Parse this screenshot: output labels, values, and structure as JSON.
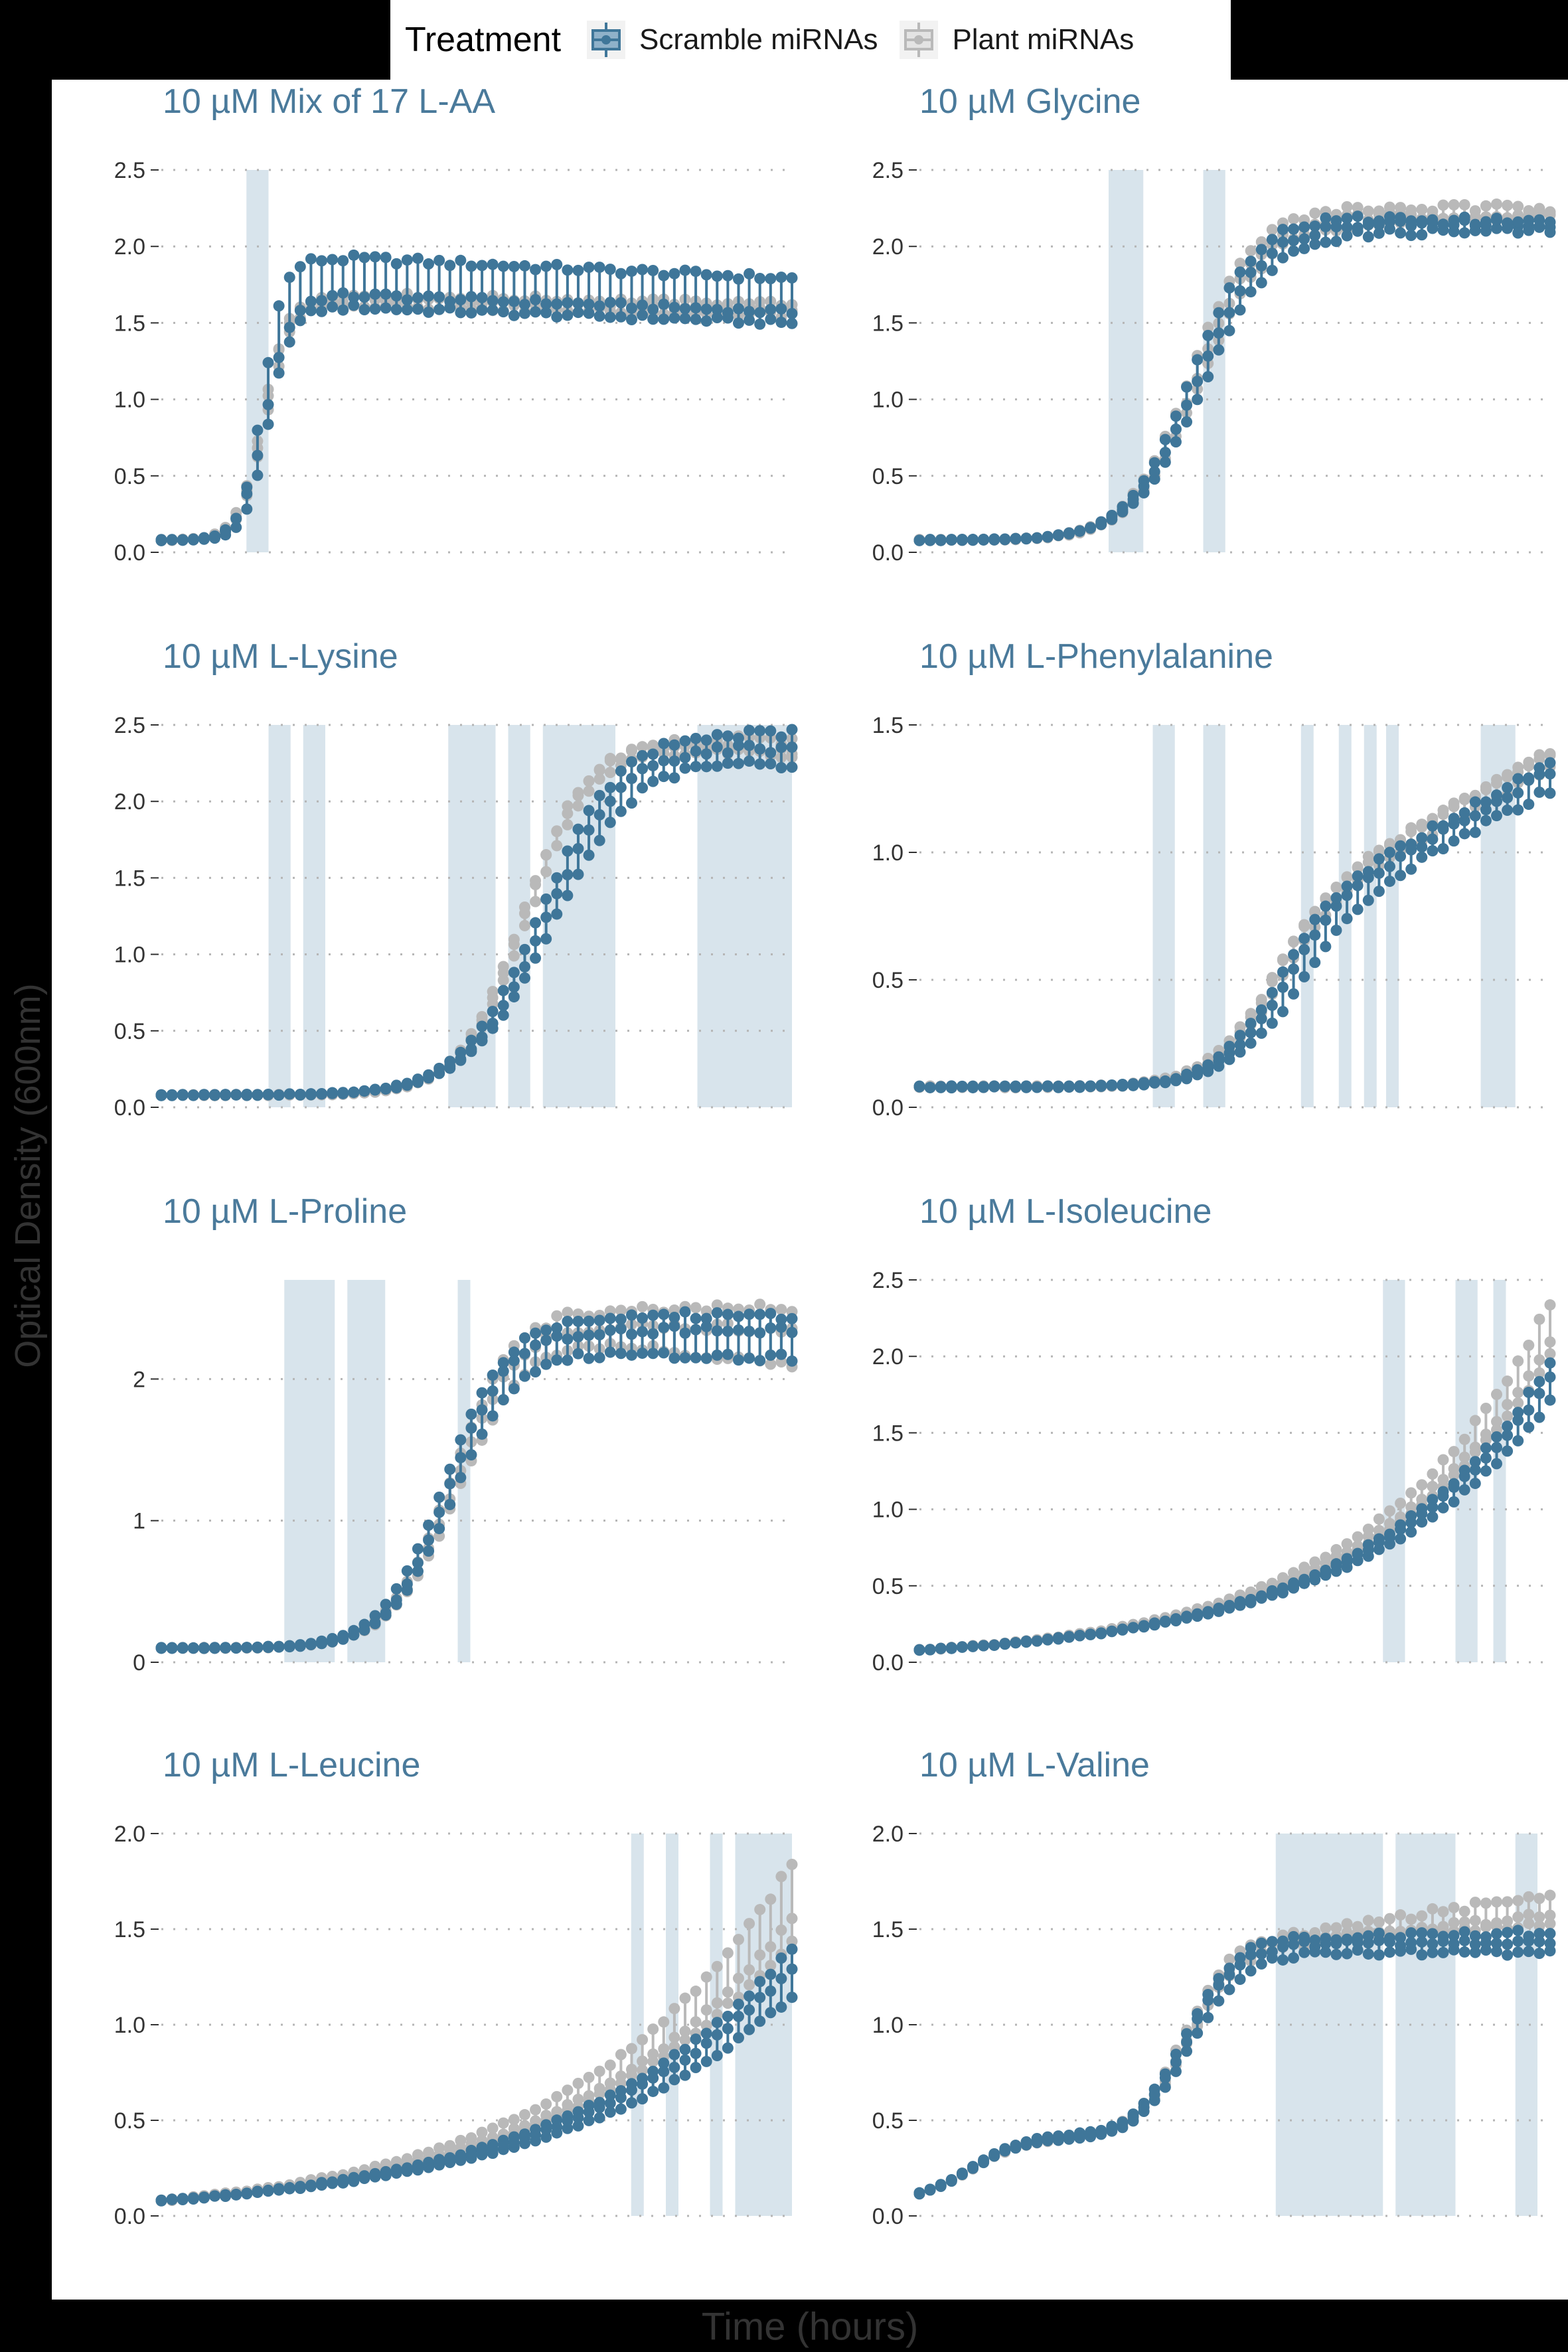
{
  "legend": {
    "title": "Treatment",
    "items": [
      {
        "label": "Scramble miRNAs",
        "color": "#3f7699"
      },
      {
        "label": "Plant miRNAs",
        "color": "#b9b9b9"
      }
    ]
  },
  "axis": {
    "xlabel": "Time (hours)",
    "ylabel": "Optical Density (600nm)"
  },
  "colors": {
    "scramble": "#3f7699",
    "plant": "#b9b9b9",
    "shade": "#d8e4ec",
    "title": "#4a7a9b"
  },
  "chart_data": [
    {
      "type": "line",
      "title": "10 µM Mix of 17 L-AA",
      "ylim": [
        0,
        2.5
      ],
      "yticks": [
        "0.0",
        "0.5",
        "1.0",
        "1.5",
        "2.0",
        "2.5"
      ],
      "ytick_values": [
        0,
        0.5,
        1,
        1.5,
        2,
        2.5
      ],
      "x": [
        0,
        100
      ],
      "n_points": 60,
      "shaded": [
        [
          13.5,
          17
        ]
      ],
      "series": [
        {
          "name": "Scramble miRNAs",
          "reps": [
            {
              "start": 0.08,
              "plateau": 1.92,
              "mid": 16,
              "rate": 0.6,
              "end": 1.79
            },
            {
              "start": 0.08,
              "plateau": 1.6,
              "mid": 17,
              "rate": 0.55,
              "end": 1.5
            },
            {
              "start": 0.08,
              "plateau": 1.68,
              "mid": 16.5,
              "rate": 0.5,
              "end": 1.57
            }
          ]
        },
        {
          "name": "Plant miRNAs",
          "reps": [
            {
              "start": 0.08,
              "plateau": 1.66,
              "mid": 16,
              "rate": 0.5,
              "end": 1.6
            },
            {
              "start": 0.08,
              "plateau": 1.62,
              "mid": 16.5,
              "rate": 0.5,
              "end": 1.55
            },
            {
              "start": 0.08,
              "plateau": 1.68,
              "mid": 16.2,
              "rate": 0.52,
              "end": 1.62
            }
          ]
        }
      ]
    },
    {
      "type": "line",
      "title": "10 µM Glycine",
      "ylim": [
        0,
        2.5
      ],
      "yticks": [
        "0.0",
        "0.5",
        "1.0",
        "1.5",
        "2.0",
        "2.5"
      ],
      "ytick_values": [
        0,
        0.5,
        1,
        1.5,
        2,
        2.5
      ],
      "x": [
        0,
        100
      ],
      "n_points": 60,
      "shaded": [
        [
          30,
          35.5
        ],
        [
          45,
          48.5
        ]
      ],
      "series": [
        {
          "name": "Scramble miRNAs",
          "reps": [
            {
              "start": 0.08,
              "plateau": 2.2,
              "mid": 43,
              "rate": 0.2,
              "end": 2.15
            },
            {
              "start": 0.08,
              "plateau": 2.1,
              "mid": 45,
              "rate": 0.18,
              "end": 2.1
            },
            {
              "start": 0.08,
              "plateau": 2.15,
              "mid": 44,
              "rate": 0.19,
              "end": 2.15
            }
          ]
        },
        {
          "name": "Plant miRNAs",
          "reps": [
            {
              "start": 0.08,
              "plateau": 2.25,
              "mid": 43,
              "rate": 0.2,
              "end": 2.25
            },
            {
              "start": 0.08,
              "plateau": 2.2,
              "mid": 44,
              "rate": 0.2,
              "end": 2.2
            },
            {
              "start": 0.08,
              "plateau": 2.15,
              "mid": 44.5,
              "rate": 0.19,
              "end": 2.2
            }
          ]
        }
      ]
    },
    {
      "type": "line",
      "title": "10 µM L-Lysine",
      "ylim": [
        0,
        2.5
      ],
      "yticks": [
        "0.0",
        "0.5",
        "1.0",
        "1.5",
        "2.0",
        "2.5"
      ],
      "ytick_values": [
        0,
        0.5,
        1,
        1.5,
        2,
        2.5
      ],
      "x": [
        0,
        100
      ],
      "n_points": 60,
      "shaded": [
        [
          17,
          20.5
        ],
        [
          22.5,
          26
        ],
        [
          45.5,
          53
        ],
        [
          55,
          58.5
        ],
        [
          60.5,
          72
        ],
        [
          85,
          100
        ]
      ],
      "series": [
        {
          "name": "Scramble miRNAs",
          "reps": [
            {
              "start": 0.08,
              "plateau": 2.45,
              "mid": 60,
              "rate": 0.16,
              "end": 2.45
            },
            {
              "start": 0.08,
              "plateau": 2.3,
              "mid": 62,
              "rate": 0.15,
              "end": 2.25
            },
            {
              "start": 0.08,
              "plateau": 2.38,
              "mid": 61,
              "rate": 0.16,
              "end": 2.35
            }
          ]
        },
        {
          "name": "Plant miRNAs",
          "reps": [
            {
              "start": 0.08,
              "plateau": 2.38,
              "mid": 57,
              "rate": 0.2,
              "end": 2.3
            },
            {
              "start": 0.08,
              "plateau": 2.35,
              "mid": 58,
              "rate": 0.19,
              "end": 2.32
            },
            {
              "start": 0.08,
              "plateau": 2.4,
              "mid": 57.5,
              "rate": 0.2,
              "end": 2.4
            }
          ]
        }
      ]
    },
    {
      "type": "line",
      "title": "10 µM L-Phenylalanine",
      "ylim": [
        0,
        1.5
      ],
      "yticks": [
        "0.0",
        "0.5",
        "1.0",
        "1.5"
      ],
      "ytick_values": [
        0,
        0.5,
        1,
        1.5
      ],
      "x": [
        0,
        100
      ],
      "n_points": 60,
      "shaded": [
        [
          37,
          40.5
        ],
        [
          45,
          48.5
        ],
        [
          60.5,
          62.5
        ],
        [
          66.5,
          68.5
        ],
        [
          70.5,
          72.5
        ],
        [
          74,
          76
        ],
        [
          89,
          94.5
        ]
      ],
      "series": [
        {
          "name": "Scramble miRNAs",
          "reps": [
            {
              "start": 0.08,
              "plateau": 0.72,
              "mid": 56,
              "rate": 0.2,
              "slope": 0.0135,
              "end": 1.22
            },
            {
              "start": 0.08,
              "plateau": 0.7,
              "mid": 58,
              "rate": 0.18,
              "slope": 0.013,
              "end": 1.2
            },
            {
              "start": 0.08,
              "plateau": 0.74,
              "mid": 55,
              "rate": 0.2,
              "slope": 0.0135,
              "end": 1.25
            }
          ]
        },
        {
          "name": "Plant miRNAs",
          "reps": [
            {
              "start": 0.08,
              "plateau": 0.75,
              "mid": 54,
              "rate": 0.2,
              "slope": 0.014,
              "end": 1.35
            },
            {
              "start": 0.08,
              "plateau": 0.72,
              "mid": 55,
              "rate": 0.2,
              "slope": 0.0135,
              "end": 1.28
            },
            {
              "start": 0.08,
              "plateau": 0.76,
              "mid": 54.5,
              "rate": 0.21,
              "slope": 0.014,
              "end": 1.3
            }
          ]
        }
      ]
    },
    {
      "type": "line",
      "title": "10 µM L-Proline",
      "ylim": [
        0,
        2.7
      ],
      "yticks": [
        "0",
        "1",
        "2"
      ],
      "ytick_values": [
        0,
        1,
        2
      ],
      "x": [
        0,
        100
      ],
      "n_points": 60,
      "shaded": [
        [
          19.5,
          27.5
        ],
        [
          29.5,
          35.5
        ],
        [
          47,
          49
        ]
      ],
      "series": [
        {
          "name": "Scramble miRNAs",
          "reps": [
            {
              "start": 0.1,
              "plateau": 2.45,
              "mid": 45,
              "rate": 0.2,
              "end": 2.45
            },
            {
              "start": 0.1,
              "plateau": 2.2,
              "mid": 46,
              "rate": 0.2,
              "end": 2.15
            },
            {
              "start": 0.1,
              "plateau": 2.35,
              "mid": 45.5,
              "rate": 0.21,
              "end": 2.35
            }
          ]
        },
        {
          "name": "Plant miRNAs",
          "reps": [
            {
              "start": 0.1,
              "plateau": 2.5,
              "mid": 46,
              "rate": 0.2,
              "end": 2.5
            },
            {
              "start": 0.1,
              "plateau": 2.3,
              "mid": 47,
              "rate": 0.19,
              "end": 2.1
            },
            {
              "start": 0.1,
              "plateau": 2.4,
              "mid": 46.5,
              "rate": 0.2,
              "end": 2.35
            }
          ]
        }
      ]
    },
    {
      "type": "line",
      "title": "10 µM L-Isoleucine",
      "ylim": [
        0,
        2.5
      ],
      "yticks": [
        "0.0",
        "0.5",
        "1.0",
        "1.5",
        "2.0",
        "2.5"
      ],
      "ytick_values": [
        0,
        0.5,
        1,
        1.5,
        2,
        2.5
      ],
      "x": [
        0,
        100
      ],
      "n_points": 60,
      "shaded": [
        [
          73.5,
          77
        ],
        [
          85,
          88.5
        ],
        [
          91,
          93
        ]
      ],
      "series": [
        {
          "name": "Scramble miRNAs",
          "reps": [
            {
              "start": 0.08,
              "growth": 3.3,
              "end": 1.95
            },
            {
              "start": 0.08,
              "growth": 3.1,
              "end": 1.7
            },
            {
              "start": 0.08,
              "growth": 3.2,
              "end": 1.85
            }
          ]
        },
        {
          "name": "Plant miRNAs",
          "reps": [
            {
              "start": 0.08,
              "growth": 3.45,
              "end": 2.35
            },
            {
              "start": 0.08,
              "growth": 3.3,
              "end": 2.1
            },
            {
              "start": 0.08,
              "growth": 3.25,
              "end": 2.0
            }
          ]
        }
      ]
    },
    {
      "type": "line",
      "title": "10 µM L-Leucine",
      "ylim": [
        0,
        2.0
      ],
      "yticks": [
        "0.0",
        "0.5",
        "1.0",
        "1.5",
        "2.0"
      ],
      "ytick_values": [
        0,
        0.5,
        1,
        1.5,
        2
      ],
      "x": [
        0,
        100
      ],
      "n_points": 60,
      "shaded": [
        [
          74.5,
          76.5
        ],
        [
          80,
          82
        ],
        [
          87,
          89
        ],
        [
          91,
          100
        ]
      ],
      "series": [
        {
          "name": "Scramble miRNAs",
          "reps": [
            {
              "start": 0.08,
              "growth": 2.75,
              "end": 1.4
            },
            {
              "start": 0.08,
              "growth": 2.6,
              "end": 1.15
            },
            {
              "start": 0.08,
              "growth": 2.7,
              "end": 1.3
            }
          ]
        },
        {
          "name": "Plant miRNAs",
          "reps": [
            {
              "start": 0.08,
              "growth": 2.85,
              "end": 1.85
            },
            {
              "start": 0.08,
              "growth": 2.7,
              "end": 1.55
            },
            {
              "start": 0.08,
              "growth": 2.65,
              "end": 1.45
            }
          ]
        }
      ]
    },
    {
      "type": "line",
      "title": "10 µM L-Valine",
      "ylim": [
        0,
        2.0
      ],
      "yticks": [
        "0.0",
        "0.5",
        "1.0",
        "1.5",
        "2.0"
      ],
      "ytick_values": [
        0,
        0.5,
        1,
        1.5,
        2
      ],
      "x": [
        0,
        100
      ],
      "n_points": 60,
      "shaded": [
        [
          56.5,
          73.5
        ],
        [
          75.5,
          85
        ],
        [
          94.5,
          98
        ]
      ],
      "series": [
        {
          "name": "Scramble miRNAs",
          "reps": [
            {
              "start": 0.08,
              "diauxic": true,
              "stage1": 0.33,
              "plateau": 1.38,
              "mid": 42,
              "rate": 0.25,
              "end": 1.4
            },
            {
              "start": 0.08,
              "diauxic": true,
              "stage1": 0.32,
              "plateau": 1.3,
              "mid": 43,
              "rate": 0.24,
              "end": 1.3
            },
            {
              "start": 0.08,
              "diauxic": true,
              "stage1": 0.34,
              "plateau": 1.35,
              "mid": 42.5,
              "rate": 0.25,
              "end": 1.35
            }
          ]
        },
        {
          "name": "Plant miRNAs",
          "reps": [
            {
              "start": 0.08,
              "diauxic": true,
              "stage1": 0.33,
              "plateau": 1.4,
              "mid": 42,
              "rate": 0.25,
              "end": 1.6
            },
            {
              "start": 0.08,
              "diauxic": true,
              "stage1": 0.32,
              "plateau": 1.35,
              "mid": 42.5,
              "rate": 0.24,
              "end": 1.5
            },
            {
              "start": 0.08,
              "diauxic": true,
              "stage1": 0.33,
              "plateau": 1.38,
              "mid": 43,
              "rate": 0.25,
              "end": 1.45
            }
          ]
        }
      ]
    }
  ]
}
